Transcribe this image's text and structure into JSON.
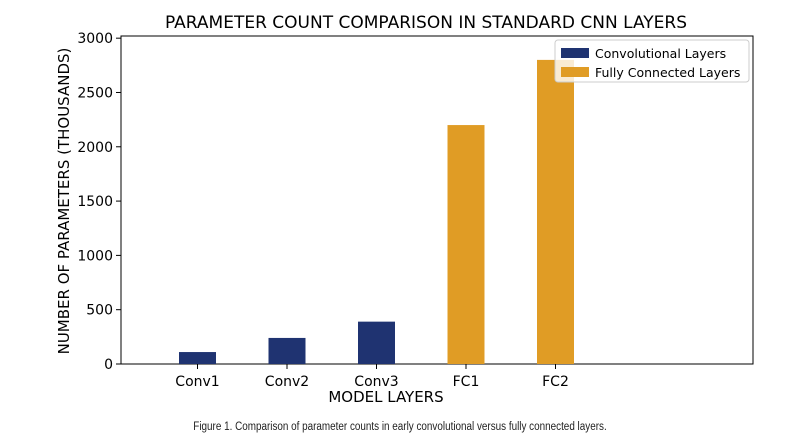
{
  "chart_data": {
    "type": "bar",
    "title": "PARAMETER COUNT COMPARISON IN STANDARD CNN LAYERS",
    "xlabel": "MODEL LAYERS",
    "ylabel": "NUMBER OF PARAMETERS (THOUSANDS)",
    "categories": [
      "Conv1",
      "Conv2",
      "Conv3",
      "FC1",
      "FC2"
    ],
    "ylim": [
      0,
      3020
    ],
    "yticks": [
      0,
      500,
      1000,
      1500,
      2000,
      2500,
      3000
    ],
    "grid": false,
    "legend_position": "top-right",
    "series": [
      {
        "name": "Convolutional Layers",
        "color": "#1f3371",
        "values": [
          110,
          240,
          390,
          null,
          null
        ]
      },
      {
        "name": "Fully Connected Layers",
        "color": "#e09c25",
        "values": [
          null,
          null,
          null,
          2200,
          2800
        ]
      }
    ]
  },
  "caption": "Figure 1. Comparison of parameter counts in early convolutional versus fully connected layers."
}
